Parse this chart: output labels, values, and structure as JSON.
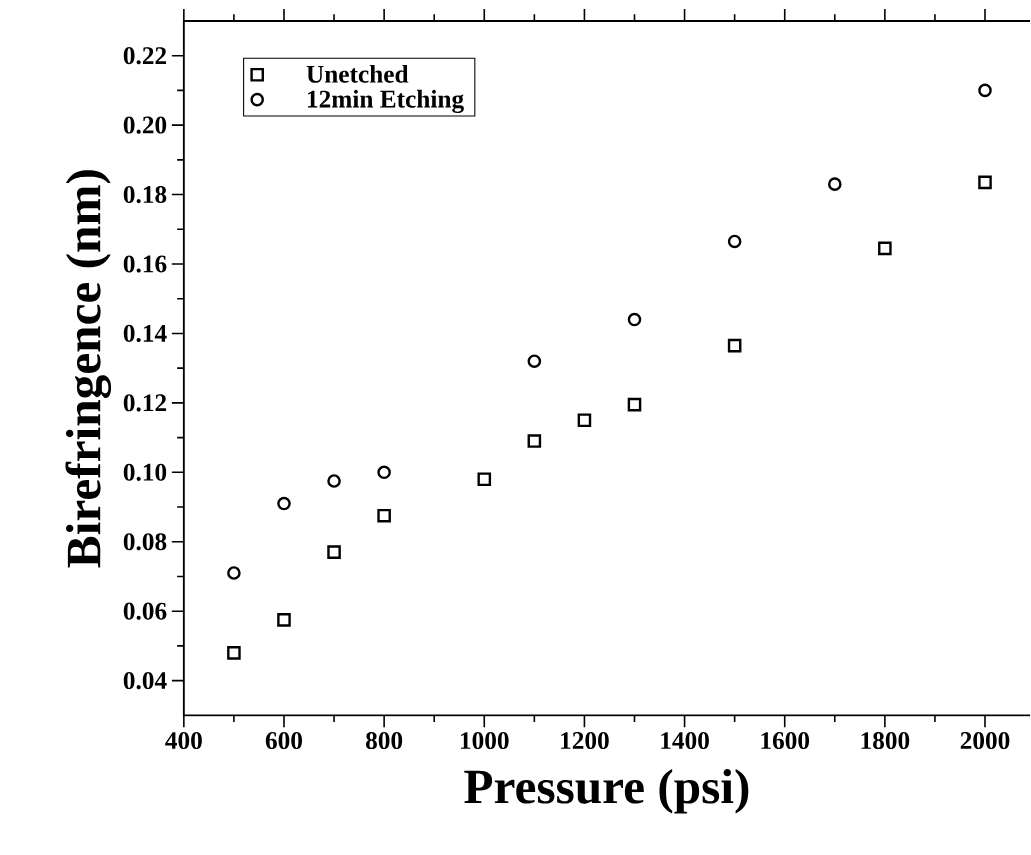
{
  "chart_data": {
    "type": "scatter",
    "xlabel": "Pressure (psi)",
    "ylabel": "Birefringence (nm)",
    "xlim": [
      400,
      2090
    ],
    "ylim": [
      0.03,
      0.23
    ],
    "xticks": [
      400,
      600,
      800,
      1000,
      1200,
      1400,
      1600,
      1800,
      2000
    ],
    "yticks": [
      {
        "value": 0.04,
        "label": "0.04"
      },
      {
        "value": 0.06,
        "label": "0.06"
      },
      {
        "value": 0.08,
        "label": "0.08"
      },
      {
        "value": 0.1,
        "label": "0.10"
      },
      {
        "value": 0.12,
        "label": "0.12"
      },
      {
        "value": 0.14,
        "label": "0.14"
      },
      {
        "value": 0.16,
        "label": "0.16"
      },
      {
        "value": 0.18,
        "label": "0.18"
      },
      {
        "value": 0.2,
        "label": "0.20"
      },
      {
        "value": 0.22,
        "label": "0.22"
      }
    ],
    "legend": "top left",
    "grid": false,
    "series": [
      {
        "name": "Unetched",
        "color": "#000000",
        "marker": "square",
        "x": [
          500,
          600,
          700,
          800,
          1000,
          1100,
          1200,
          1300,
          1500,
          1800,
          2000
        ],
        "values": [
          0.048,
          0.0575,
          0.077,
          0.0875,
          0.098,
          0.109,
          0.115,
          0.1195,
          0.1365,
          0.1645,
          0.1835
        ]
      },
      {
        "name": "12min Etching",
        "color": "#000000",
        "marker": "circle",
        "x": [
          500,
          600,
          700,
          800,
          1100,
          1300,
          1500,
          1700,
          2000
        ],
        "values": [
          0.071,
          0.091,
          0.0975,
          0.1,
          0.132,
          0.144,
          0.1665,
          0.183,
          0.21
        ]
      }
    ]
  }
}
